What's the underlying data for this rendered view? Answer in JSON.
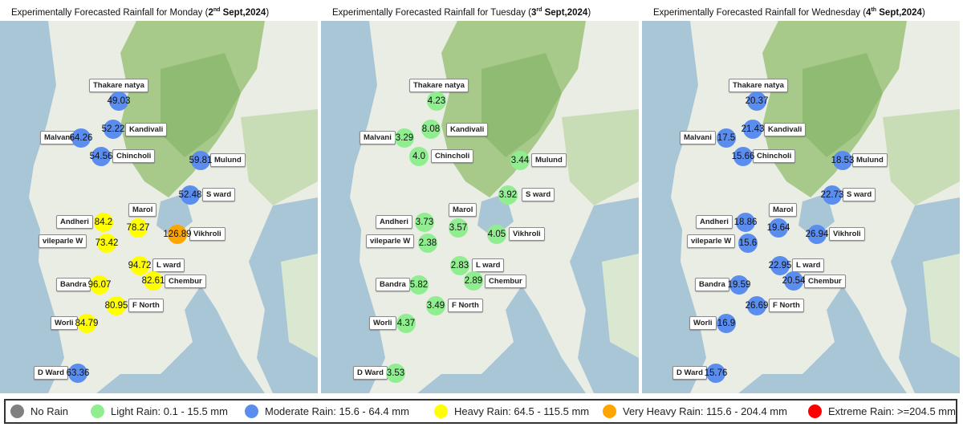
{
  "colors": {
    "no_rain": "#808080",
    "light": "#90EE90",
    "moderate": "#5B8DEF",
    "heavy": "#FFFF00",
    "very_heavy": "#FFA500",
    "extreme": "#FF0000"
  },
  "panels": [
    {
      "title_prefix": "Experimentally Forecasted Rainfall for Monday (",
      "title_day": "2",
      "title_sup": "nd",
      "title_date": " Sept,2024",
      "title_suffix": ")",
      "stations": [
        {
          "name": "Thakare natya",
          "value": "49.03",
          "category": "moderate"
        },
        {
          "name": "Kandivali",
          "value": "52.22",
          "category": "moderate"
        },
        {
          "name": "Malvani",
          "value": "64.26",
          "category": "moderate"
        },
        {
          "name": "Chincholi",
          "value": "54.56",
          "category": "moderate"
        },
        {
          "name": "Mulund",
          "value": "59.81",
          "category": "moderate"
        },
        {
          "name": "S ward",
          "value": "52.48",
          "category": "moderate"
        },
        {
          "name": "Marol",
          "value": "78.27",
          "category": "heavy"
        },
        {
          "name": "Andheri",
          "value": "84.2",
          "category": "heavy"
        },
        {
          "name": "Vikhroli",
          "value": "126.89",
          "category": "very_heavy"
        },
        {
          "name": "vileparle W",
          "value": "73.42",
          "category": "heavy"
        },
        {
          "name": "L ward",
          "value": "94.72",
          "category": "heavy"
        },
        {
          "name": "Chembur",
          "value": "82.61",
          "category": "heavy"
        },
        {
          "name": "Bandra",
          "value": "96.07",
          "category": "heavy"
        },
        {
          "name": "F North",
          "value": "80.95",
          "category": "heavy"
        },
        {
          "name": "Worli",
          "value": "84.79",
          "category": "heavy"
        },
        {
          "name": "D Ward",
          "value": "63.36",
          "category": "moderate"
        }
      ]
    },
    {
      "title_prefix": "Experimentally Forecasted Rainfall for Tuesday (",
      "title_day": "3",
      "title_sup": "rd",
      "title_date": " Sept,2024",
      "title_suffix": ")",
      "stations": [
        {
          "name": "Thakare natya",
          "value": "4.23",
          "category": "light"
        },
        {
          "name": "Kandivali",
          "value": "8.08",
          "category": "light"
        },
        {
          "name": "Malvani",
          "value": "3.29",
          "category": "light"
        },
        {
          "name": "Chincholi",
          "value": "4.0",
          "category": "light"
        },
        {
          "name": "Mulund",
          "value": "3.44",
          "category": "light"
        },
        {
          "name": "S ward",
          "value": "3.92",
          "category": "light"
        },
        {
          "name": "Marol",
          "value": "3.57",
          "category": "light"
        },
        {
          "name": "Andheri",
          "value": "3.73",
          "category": "light"
        },
        {
          "name": "Vikhroli",
          "value": "4.05",
          "category": "light"
        },
        {
          "name": "vileparle W",
          "value": "2.38",
          "category": "light"
        },
        {
          "name": "L ward",
          "value": "2.83",
          "category": "light"
        },
        {
          "name": "Chembur",
          "value": "2.89",
          "category": "light"
        },
        {
          "name": "Bandra",
          "value": "5.82",
          "category": "light"
        },
        {
          "name": "F North",
          "value": "3.49",
          "category": "light"
        },
        {
          "name": "Worli",
          "value": "4.37",
          "category": "light"
        },
        {
          "name": "D Ward",
          "value": "3.53",
          "category": "light"
        }
      ]
    },
    {
      "title_prefix": "Experimentally Forecasted Rainfall for Wednesday (",
      "title_day": "4",
      "title_sup": "th",
      "title_date": " Sept,2024",
      "title_suffix": ")",
      "stations": [
        {
          "name": "Thakare natya",
          "value": "20.37",
          "category": "moderate"
        },
        {
          "name": "Kandivali",
          "value": "21.43",
          "category": "moderate"
        },
        {
          "name": "Malvani",
          "value": "17.5",
          "category": "moderate"
        },
        {
          "name": "Chincholi",
          "value": "15.66",
          "category": "moderate"
        },
        {
          "name": "Mulund",
          "value": "18.53",
          "category": "moderate"
        },
        {
          "name": "S ward",
          "value": "22.73",
          "category": "moderate"
        },
        {
          "name": "Marol",
          "value": "19.64",
          "category": "moderate"
        },
        {
          "name": "Andheri",
          "value": "18.86",
          "category": "moderate"
        },
        {
          "name": "Vikhroli",
          "value": "26.94",
          "category": "moderate"
        },
        {
          "name": "vileparle W",
          "value": "15.6",
          "category": "moderate"
        },
        {
          "name": "L ward",
          "value": "22.95",
          "category": "moderate"
        },
        {
          "name": "Chembur",
          "value": "20.54",
          "category": "moderate"
        },
        {
          "name": "Bandra",
          "value": "19.59",
          "category": "moderate"
        },
        {
          "name": "F North",
          "value": "26.69",
          "category": "moderate"
        },
        {
          "name": "Worli",
          "value": "16.9",
          "category": "moderate"
        },
        {
          "name": "D Ward",
          "value": "15.76",
          "category": "moderate"
        }
      ]
    }
  ],
  "legend": [
    {
      "label": "No Rain",
      "category": "no_rain"
    },
    {
      "label": "Light Rain: 0.1 - 15.5 mm",
      "category": "light"
    },
    {
      "label": "Moderate Rain: 15.6 - 64.4 mm",
      "category": "moderate"
    },
    {
      "label": "Heavy Rain: 64.5 - 115.5 mm",
      "category": "heavy"
    },
    {
      "label": "Very Heavy Rain: 115.6 - 204.4 mm",
      "category": "very_heavy"
    },
    {
      "label": "Extreme Rain: >=204.5 mm",
      "category": "extreme"
    }
  ]
}
